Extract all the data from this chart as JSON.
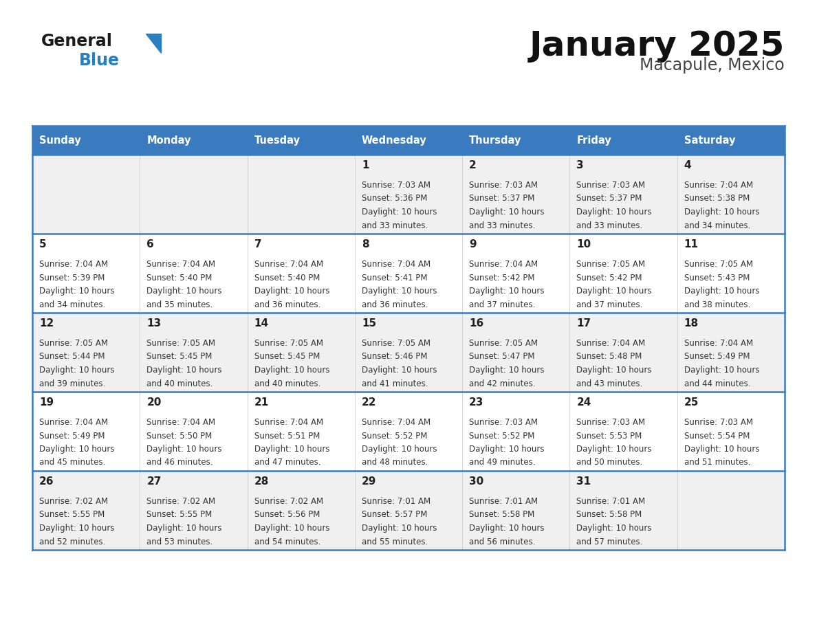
{
  "title": "January 2025",
  "subtitle": "Macapule, Mexico",
  "header_color": "#3a7abf",
  "header_text_color": "#ffffff",
  "cell_bg_odd": "#f0f0f0",
  "cell_bg_even": "#ffffff",
  "border_color": "#3a7abf",
  "days_of_week": [
    "Sunday",
    "Monday",
    "Tuesday",
    "Wednesday",
    "Thursday",
    "Friday",
    "Saturday"
  ],
  "title_color": "#111111",
  "subtitle_color": "#444444",
  "day_num_color": "#222222",
  "info_color": "#333333",
  "logo_general_color": "#1a1a1a",
  "logo_blue_color": "#2a7fc1",
  "logo_triangle_color": "#2a7fc1",
  "calendar": [
    [
      {
        "day": "",
        "sunrise": "",
        "sunset": "",
        "daylight_min": ""
      },
      {
        "day": "",
        "sunrise": "",
        "sunset": "",
        "daylight_min": ""
      },
      {
        "day": "",
        "sunrise": "",
        "sunset": "",
        "daylight_min": ""
      },
      {
        "day": "1",
        "sunrise": "7:03 AM",
        "sunset": "5:36 PM",
        "daylight_min": "33"
      },
      {
        "day": "2",
        "sunrise": "7:03 AM",
        "sunset": "5:37 PM",
        "daylight_min": "33"
      },
      {
        "day": "3",
        "sunrise": "7:03 AM",
        "sunset": "5:37 PM",
        "daylight_min": "33"
      },
      {
        "day": "4",
        "sunrise": "7:04 AM",
        "sunset": "5:38 PM",
        "daylight_min": "34"
      }
    ],
    [
      {
        "day": "5",
        "sunrise": "7:04 AM",
        "sunset": "5:39 PM",
        "daylight_min": "34"
      },
      {
        "day": "6",
        "sunrise": "7:04 AM",
        "sunset": "5:40 PM",
        "daylight_min": "35"
      },
      {
        "day": "7",
        "sunrise": "7:04 AM",
        "sunset": "5:40 PM",
        "daylight_min": "36"
      },
      {
        "day": "8",
        "sunrise": "7:04 AM",
        "sunset": "5:41 PM",
        "daylight_min": "36"
      },
      {
        "day": "9",
        "sunrise": "7:04 AM",
        "sunset": "5:42 PM",
        "daylight_min": "37"
      },
      {
        "day": "10",
        "sunrise": "7:05 AM",
        "sunset": "5:42 PM",
        "daylight_min": "37"
      },
      {
        "day": "11",
        "sunrise": "7:05 AM",
        "sunset": "5:43 PM",
        "daylight_min": "38"
      }
    ],
    [
      {
        "day": "12",
        "sunrise": "7:05 AM",
        "sunset": "5:44 PM",
        "daylight_min": "39"
      },
      {
        "day": "13",
        "sunrise": "7:05 AM",
        "sunset": "5:45 PM",
        "daylight_min": "40"
      },
      {
        "day": "14",
        "sunrise": "7:05 AM",
        "sunset": "5:45 PM",
        "daylight_min": "40"
      },
      {
        "day": "15",
        "sunrise": "7:05 AM",
        "sunset": "5:46 PM",
        "daylight_min": "41"
      },
      {
        "day": "16",
        "sunrise": "7:05 AM",
        "sunset": "5:47 PM",
        "daylight_min": "42"
      },
      {
        "day": "17",
        "sunrise": "7:04 AM",
        "sunset": "5:48 PM",
        "daylight_min": "43"
      },
      {
        "day": "18",
        "sunrise": "7:04 AM",
        "sunset": "5:49 PM",
        "daylight_min": "44"
      }
    ],
    [
      {
        "day": "19",
        "sunrise": "7:04 AM",
        "sunset": "5:49 PM",
        "daylight_min": "45"
      },
      {
        "day": "20",
        "sunrise": "7:04 AM",
        "sunset": "5:50 PM",
        "daylight_min": "46"
      },
      {
        "day": "21",
        "sunrise": "7:04 AM",
        "sunset": "5:51 PM",
        "daylight_min": "47"
      },
      {
        "day": "22",
        "sunrise": "7:04 AM",
        "sunset": "5:52 PM",
        "daylight_min": "48"
      },
      {
        "day": "23",
        "sunrise": "7:03 AM",
        "sunset": "5:52 PM",
        "daylight_min": "49"
      },
      {
        "day": "24",
        "sunrise": "7:03 AM",
        "sunset": "5:53 PM",
        "daylight_min": "50"
      },
      {
        "day": "25",
        "sunrise": "7:03 AM",
        "sunset": "5:54 PM",
        "daylight_min": "51"
      }
    ],
    [
      {
        "day": "26",
        "sunrise": "7:02 AM",
        "sunset": "5:55 PM",
        "daylight_min": "52"
      },
      {
        "day": "27",
        "sunrise": "7:02 AM",
        "sunset": "5:55 PM",
        "daylight_min": "53"
      },
      {
        "day": "28",
        "sunrise": "7:02 AM",
        "sunset": "5:56 PM",
        "daylight_min": "54"
      },
      {
        "day": "29",
        "sunrise": "7:01 AM",
        "sunset": "5:57 PM",
        "daylight_min": "55"
      },
      {
        "day": "30",
        "sunrise": "7:01 AM",
        "sunset": "5:58 PM",
        "daylight_min": "56"
      },
      {
        "day": "31",
        "sunrise": "7:01 AM",
        "sunset": "5:58 PM",
        "daylight_min": "57"
      },
      {
        "day": "",
        "sunrise": "",
        "sunset": "",
        "daylight_min": ""
      }
    ]
  ]
}
